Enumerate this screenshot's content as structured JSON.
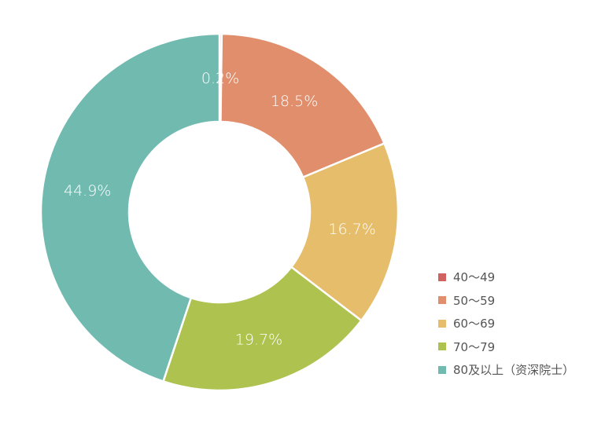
{
  "chart_data": {
    "type": "pie",
    "donut": true,
    "categories": [
      "40～49",
      "50～59",
      "60～69",
      "70～79",
      "80及以上（资深院士）"
    ],
    "values": [
      0.2,
      18.5,
      16.7,
      19.7,
      44.9
    ],
    "labels": [
      "0.2%",
      "18.5%",
      "16.7%",
      "19.7%",
      "44.9%"
    ],
    "colors": [
      "#d0625f",
      "#e08e6b",
      "#e6bd6b",
      "#aec24f",
      "#71bab0"
    ],
    "title": "",
    "legend_position": "bottom-right"
  }
}
